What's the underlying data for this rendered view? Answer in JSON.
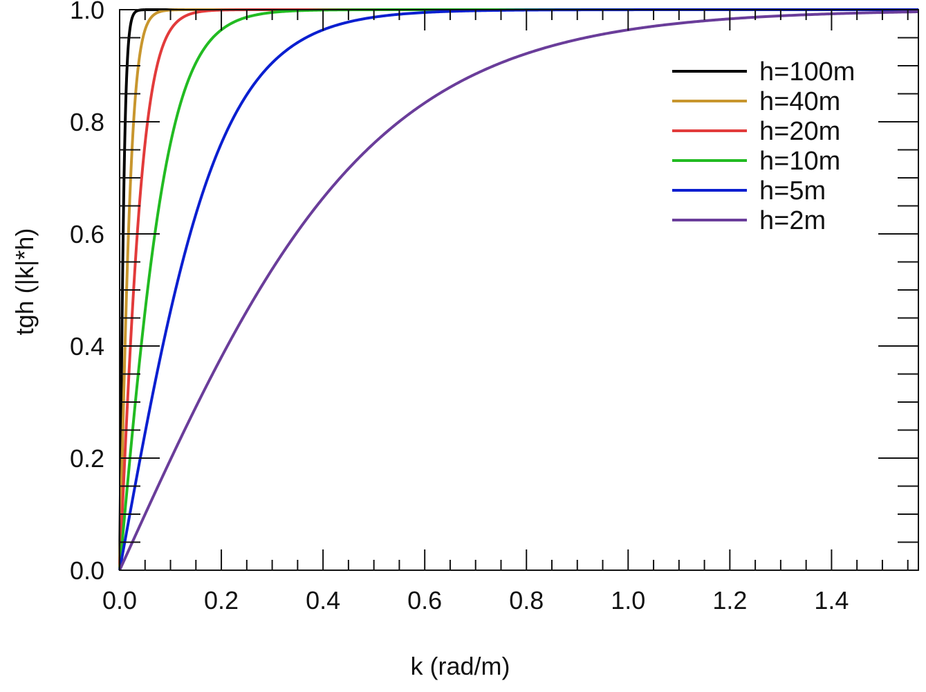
{
  "chart_data": {
    "type": "line",
    "title": "",
    "xlabel": "k (rad/m)",
    "ylabel": "tgh (|k|*h)",
    "xlim": [
      0,
      1.5708
    ],
    "ylim": [
      0,
      1.0
    ],
    "x_ticks": [
      "0.0",
      "0.2",
      "0.4",
      "0.6",
      "0.8",
      "1.0",
      "1.2",
      "1.4"
    ],
    "y_ticks": [
      "0.0",
      "0.2",
      "0.4",
      "0.6",
      "0.8",
      "1.0"
    ],
    "grid": false,
    "legend_position": "top-right",
    "function": "tanh(k*h)",
    "series": [
      {
        "name": "h=100m",
        "h": 100,
        "color": "#000000",
        "x": [
          0,
          0.005,
          0.01,
          0.02,
          0.03,
          0.05,
          0.1,
          1.5708
        ],
        "y": [
          0,
          0.462,
          0.762,
          0.964,
          0.995,
          1.0,
          1.0,
          1.0
        ]
      },
      {
        "name": "h=40m",
        "h": 40,
        "color": "#c8962e",
        "x": [
          0,
          0.01,
          0.02,
          0.03,
          0.05,
          0.075,
          0.1,
          1.5708
        ],
        "y": [
          0,
          0.38,
          0.664,
          0.834,
          0.964,
          0.995,
          0.999,
          1.0
        ]
      },
      {
        "name": "h=20m",
        "h": 20,
        "color": "#e23b3b",
        "x": [
          0,
          0.02,
          0.04,
          0.06,
          0.1,
          0.15,
          0.2,
          1.5708
        ],
        "y": [
          0,
          0.38,
          0.664,
          0.834,
          0.964,
          0.995,
          0.999,
          1.0
        ]
      },
      {
        "name": "h=10m",
        "h": 10,
        "color": "#22bb22",
        "x": [
          0,
          0.05,
          0.1,
          0.15,
          0.2,
          0.3,
          0.4,
          1.5708
        ],
        "y": [
          0,
          0.462,
          0.762,
          0.905,
          0.964,
          0.995,
          0.999,
          1.0
        ]
      },
      {
        "name": "h=5m",
        "h": 5,
        "color": "#0a1fd0",
        "x": [
          0,
          0.1,
          0.2,
          0.3,
          0.4,
          0.5,
          0.6,
          0.8,
          1.5708
        ],
        "y": [
          0,
          0.462,
          0.762,
          0.905,
          0.964,
          0.987,
          0.995,
          0.999,
          1.0
        ]
      },
      {
        "name": "h=2m",
        "h": 2,
        "color": "#6a3d9a",
        "x": [
          0,
          0.2,
          0.4,
          0.6,
          0.8,
          1.0,
          1.2,
          1.4,
          1.5708
        ],
        "y": [
          0,
          0.38,
          0.664,
          0.834,
          0.922,
          0.964,
          0.984,
          0.993,
          0.996
        ]
      }
    ]
  }
}
